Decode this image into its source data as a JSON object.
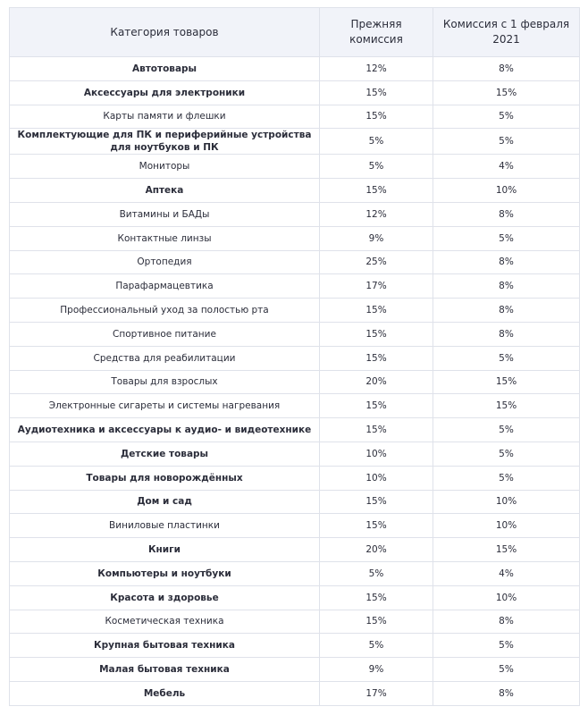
{
  "table": {
    "header": [
      "Категория товаров",
      "Прежняя комиссия",
      "Комиссия с 1 февраля 2021"
    ],
    "rows": [
      {
        "category": "Автотовары",
        "old": "12%",
        "new": "8%",
        "bold": true
      },
      {
        "category": "Аксессуары для электроники",
        "old": "15%",
        "new": "15%",
        "bold": true
      },
      {
        "category": "Карты памяти и флешки",
        "old": "15%",
        "new": "5%",
        "bold": false
      },
      {
        "category": "Комплектующие для ПК и периферийные устройства для ноутбуков и ПК",
        "old": "5%",
        "new": "5%",
        "bold": true
      },
      {
        "category": "Мониторы",
        "old": "5%",
        "new": "4%",
        "bold": false
      },
      {
        "category": "Аптека",
        "old": "15%",
        "new": "10%",
        "bold": true
      },
      {
        "category": "Витамины и БАДы",
        "old": "12%",
        "new": "8%",
        "bold": false
      },
      {
        "category": "Контактные линзы",
        "old": "9%",
        "new": "5%",
        "bold": false
      },
      {
        "category": "Ортопедия",
        "old": "25%",
        "new": "8%",
        "bold": false
      },
      {
        "category": "Парафармацевтика",
        "old": "17%",
        "new": "8%",
        "bold": false
      },
      {
        "category": "Профессиональный уход за полостью рта",
        "old": "15%",
        "new": "8%",
        "bold": false
      },
      {
        "category": "Спортивное питание",
        "old": "15%",
        "new": "8%",
        "bold": false
      },
      {
        "category": "Средства для реабилитации",
        "old": "15%",
        "new": "5%",
        "bold": false
      },
      {
        "category": "Товары для взрослых",
        "old": "20%",
        "new": "15%",
        "bold": false
      },
      {
        "category": "Электронные сигареты и системы нагревания",
        "old": "15%",
        "new": "15%",
        "bold": false
      },
      {
        "category": "Аудиотехника и аксессуары к аудио- и видеотехнике",
        "old": "15%",
        "new": "5%",
        "bold": true
      },
      {
        "category": "Детские товары",
        "old": "10%",
        "new": "5%",
        "bold": true
      },
      {
        "category": "Товары для новорождённых",
        "old": "10%",
        "new": "5%",
        "bold": true
      },
      {
        "category": "Дом и сад",
        "old": "15%",
        "new": "10%",
        "bold": true
      },
      {
        "category": "Виниловые пластинки",
        "old": "15%",
        "new": "10%",
        "bold": false
      },
      {
        "category": "Книги",
        "old": "20%",
        "new": "15%",
        "bold": true
      },
      {
        "category": "Компьютеры и ноутбуки",
        "old": "5%",
        "new": "4%",
        "bold": true
      },
      {
        "category": "Красота и здоровье",
        "old": "15%",
        "new": "10%",
        "bold": true
      },
      {
        "category": "Косметическая техника",
        "old": "15%",
        "new": "8%",
        "bold": false
      },
      {
        "category": "Крупная бытовая техника",
        "old": "5%",
        "new": "5%",
        "bold": true
      },
      {
        "category": "Малая бытовая техника",
        "old": "9%",
        "new": "5%",
        "bold": true
      },
      {
        "category": "Мебель",
        "old": "17%",
        "new": "8%",
        "bold": true
      }
    ]
  }
}
